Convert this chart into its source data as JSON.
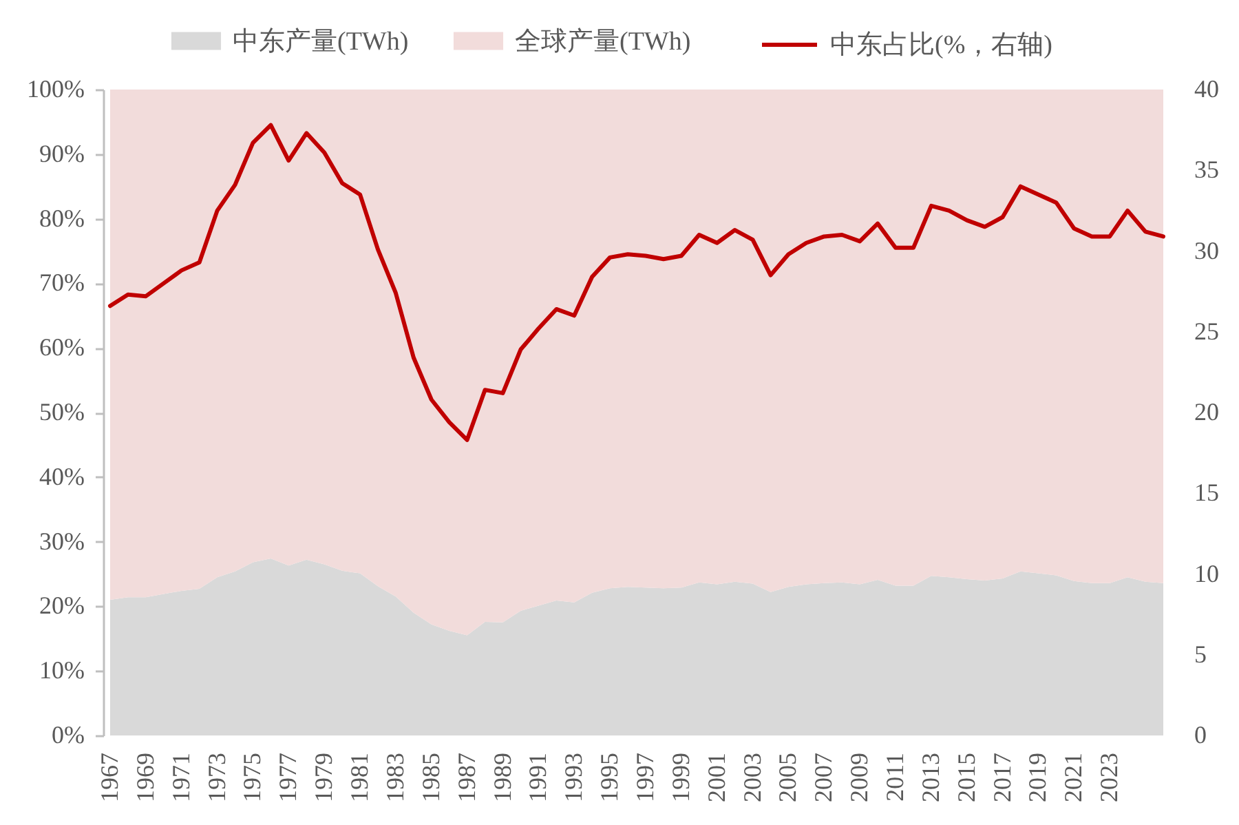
{
  "chart_data": {
    "type": "area",
    "stacked": true,
    "legend": "top",
    "categories": [
      "1967",
      null,
      "1969",
      null,
      "1971",
      null,
      "1973",
      null,
      "1975",
      null,
      "1977",
      null,
      "1979",
      null,
      "1981",
      null,
      "1983",
      null,
      "1985",
      null,
      "1987",
      null,
      "1989",
      null,
      "1991",
      null,
      "1993",
      null,
      "1995",
      null,
      "1997",
      null,
      "1999",
      null,
      "2001",
      null,
      "2003",
      null,
      "2005",
      null,
      "2007",
      null,
      "2009",
      null,
      "2011",
      null,
      "2013",
      null,
      "2015",
      null,
      "2017",
      null,
      "2019",
      null,
      "2021",
      null,
      "2023",
      null,
      null,
      null
    ],
    "ylim": [
      0,
      100
    ],
    "yticks": [
      {
        "value": 0,
        "label": "0%"
      },
      {
        "value": 10,
        "label": "10%"
      },
      {
        "value": 20,
        "label": "20%"
      },
      {
        "value": 30,
        "label": "30%"
      },
      {
        "value": 40,
        "label": "40%"
      },
      {
        "value": 50,
        "label": "50%"
      },
      {
        "value": 60,
        "label": "60%"
      },
      {
        "value": 70,
        "label": "70%"
      },
      {
        "value": 80,
        "label": "80%"
      },
      {
        "value": 90,
        "label": "90%"
      },
      {
        "value": 100,
        "label": "100%"
      }
    ],
    "y2lim": [
      0,
      40
    ],
    "y2ticks": [
      0,
      5,
      10,
      15,
      20,
      25,
      30,
      35,
      40
    ],
    "series": [
      {
        "name": "中东产量(TWh)",
        "color": "#d9d9d9",
        "values": [
          21.0,
          21.4,
          21.4,
          21.9,
          22.4,
          22.7,
          24.5,
          25.4,
          26.8,
          27.4,
          26.3,
          27.2,
          26.5,
          25.5,
          25.1,
          23.1,
          21.5,
          19.0,
          17.2,
          16.2,
          15.5,
          17.6,
          17.5,
          19.3,
          20.1,
          20.9,
          20.6,
          22.1,
          22.8,
          23.0,
          22.9,
          22.8,
          22.9,
          23.7,
          23.4,
          23.8,
          23.5,
          22.2,
          23.0,
          23.4,
          23.6,
          23.7,
          23.4,
          24.1,
          23.2,
          23.2,
          24.7,
          24.5,
          24.2,
          24.0,
          24.3,
          25.4,
          25.1,
          24.8,
          23.9,
          23.6,
          23.6,
          24.5,
          23.8,
          23.6
        ]
      },
      {
        "name": "全球产量(TWh)",
        "color": "#f2dcdb",
        "values": [
          79.0,
          78.6,
          78.6,
          78.1,
          77.6,
          77.3,
          75.5,
          74.6,
          73.2,
          72.6,
          73.7,
          72.8,
          73.5,
          74.5,
          74.9,
          76.9,
          78.5,
          81.0,
          82.8,
          83.8,
          84.5,
          82.4,
          82.5,
          80.7,
          79.9,
          79.1,
          79.4,
          77.9,
          77.2,
          77.0,
          77.1,
          77.2,
          77.1,
          76.3,
          76.6,
          76.2,
          76.5,
          77.8,
          77.0,
          76.6,
          76.4,
          76.3,
          76.6,
          75.9,
          76.8,
          76.8,
          75.3,
          75.5,
          75.8,
          76.0,
          75.7,
          74.6,
          74.9,
          75.2,
          76.1,
          76.4,
          76.4,
          75.5,
          76.2,
          76.4
        ]
      },
      {
        "name": "中东占比(%，右轴)",
        "color": "#c00000",
        "type": "line",
        "axis": "y2",
        "values": [
          26.6,
          27.3,
          27.2,
          28.0,
          28.8,
          29.3,
          32.5,
          34.1,
          36.7,
          37.8,
          35.6,
          37.3,
          36.1,
          34.2,
          33.5,
          30.1,
          27.4,
          23.4,
          20.8,
          19.4,
          18.3,
          21.4,
          21.2,
          23.9,
          25.2,
          26.4,
          26.0,
          28.4,
          29.6,
          29.8,
          29.7,
          29.5,
          29.7,
          31.0,
          30.5,
          31.3,
          30.7,
          28.5,
          29.8,
          30.5,
          30.9,
          31.0,
          30.6,
          31.7,
          30.2,
          30.2,
          32.8,
          32.5,
          31.9,
          31.5,
          32.1,
          34.0,
          33.5,
          33.0,
          31.4,
          30.9,
          30.9,
          32.5,
          31.2,
          30.9
        ]
      }
    ]
  }
}
